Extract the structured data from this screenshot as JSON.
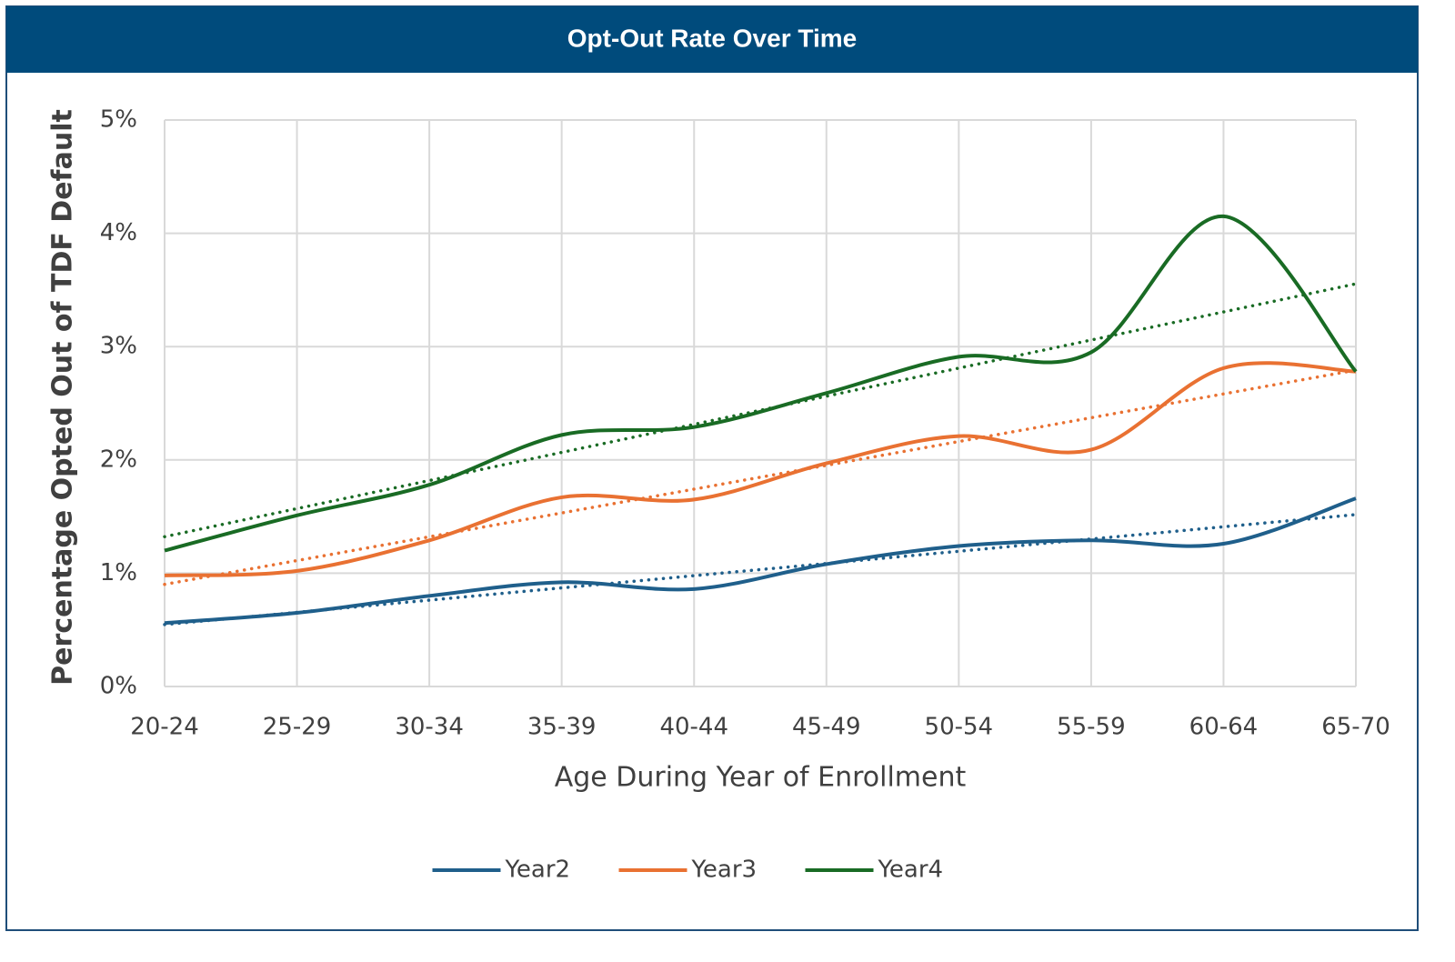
{
  "chart_data": {
    "type": "line",
    "title": "Opt-Out Rate Over Time",
    "x_label": "Age During Year of Enrollment",
    "y_label": "Percentage Opted Out of TDF Default",
    "categories": [
      "20-24",
      "25-29",
      "30-34",
      "35-39",
      "40-44",
      "45-49",
      "50-54",
      "55-59",
      "60-64",
      "65-70"
    ],
    "series": [
      {
        "name": "Year2",
        "color": "#1f5f8b",
        "values": [
          0.56,
          0.65,
          0.8,
          0.92,
          0.86,
          1.08,
          1.24,
          1.29,
          1.26,
          1.66
        ]
      },
      {
        "name": "Year3",
        "color": "#e97132",
        "values": [
          0.98,
          1.02,
          1.29,
          1.67,
          1.65,
          1.97,
          2.21,
          2.09,
          2.81,
          2.78
        ]
      },
      {
        "name": "Year4",
        "color": "#196b24",
        "values": [
          1.2,
          1.51,
          1.78,
          2.22,
          2.29,
          2.59,
          2.91,
          2.95,
          4.15,
          2.78
        ]
      }
    ],
    "ylim": [
      0,
      5
    ],
    "yticks": [
      {
        "value": 0,
        "label": "0%"
      },
      {
        "value": 1,
        "label": "1%"
      },
      {
        "value": 2,
        "label": "2%"
      },
      {
        "value": 3,
        "label": "3%"
      },
      {
        "value": 4,
        "label": "4%"
      },
      {
        "value": 5,
        "label": "5%"
      }
    ],
    "grid": true,
    "smooth": true,
    "trendline": "linear",
    "legend": "bottom"
  }
}
